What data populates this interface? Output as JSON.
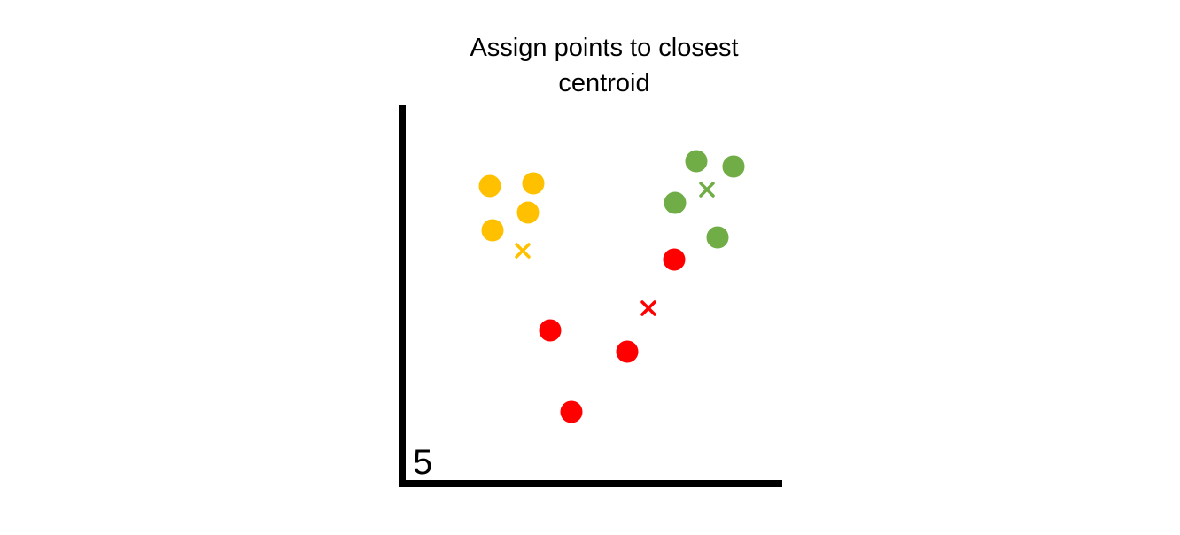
{
  "title": {
    "line1": "Assign points to closest",
    "line2": "centroid"
  },
  "step_number": "5",
  "colors": {
    "axis": "#000000",
    "cluster_yellow": "#FFC000",
    "cluster_green": "#70AD47",
    "cluster_red": "#FF0000"
  },
  "clusters": [
    {
      "id": "yellow",
      "color": "#FFC000",
      "points": [
        [
          553,
          210
        ],
        [
          602,
          207
        ],
        [
          596,
          240
        ],
        [
          556,
          260
        ]
      ],
      "centroid": [
        590,
        283
      ]
    },
    {
      "id": "green",
      "color": "#70AD47",
      "points": [
        [
          786,
          182
        ],
        [
          828,
          188
        ],
        [
          762,
          229
        ],
        [
          810,
          268
        ]
      ],
      "centroid": [
        798,
        214
      ]
    },
    {
      "id": "red",
      "color": "#FF0000",
      "points": [
        [
          761,
          293
        ],
        [
          621,
          373
        ],
        [
          708,
          397
        ],
        [
          645,
          465
        ]
      ],
      "centroid": [
        732,
        348
      ]
    }
  ]
}
